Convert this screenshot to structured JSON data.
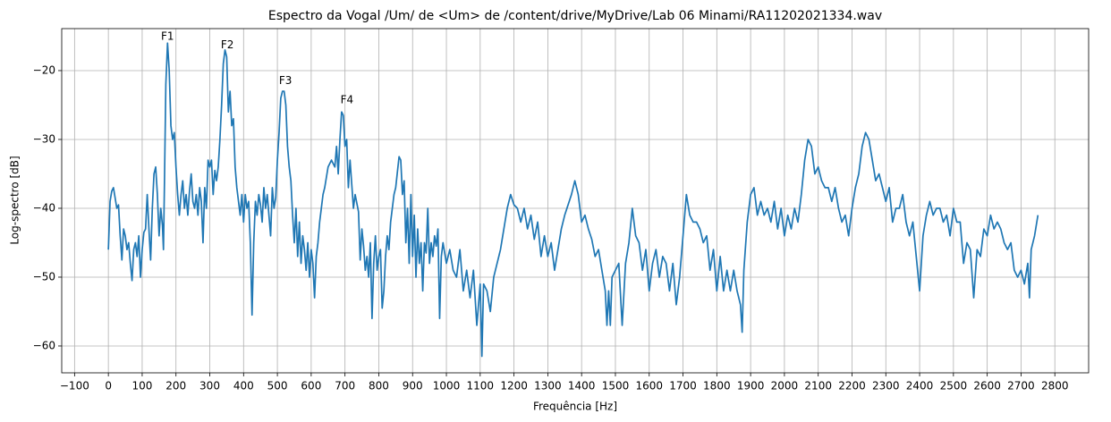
{
  "chart_data": {
    "type": "line",
    "title": "Espectro da Vogal /Um/ de <Um> de /content/drive/MyDrive/Lab 06 Minami/RA11202021334.wav",
    "xlabel": "Frequência [Hz]",
    "ylabel": "Log-spectro [dB]",
    "grid": true,
    "xlim": [
      -138,
      2900
    ],
    "ylim": [
      -63.9,
      -13.9
    ],
    "xticks": [
      {
        "value": -100,
        "label": "−100"
      },
      0,
      100,
      200,
      300,
      400,
      500,
      600,
      700,
      800,
      900,
      1000,
      1100,
      1200,
      1300,
      1400,
      1500,
      1600,
      1700,
      1800,
      1900,
      2000,
      2100,
      2200,
      2300,
      2400,
      2500,
      2600,
      2700,
      2800
    ],
    "yticks": [
      {
        "value": -60,
        "label": "−60"
      },
      {
        "value": -50,
        "label": "−50"
      },
      {
        "value": -40,
        "label": "−40"
      },
      {
        "value": -30,
        "label": "−30"
      },
      {
        "value": -20,
        "label": "−20"
      }
    ],
    "annotations": [
      {
        "text": "F1",
        "x": 175,
        "y": -15.1
      },
      {
        "text": "F2",
        "x": 352,
        "y": -16.3
      },
      {
        "text": "F3",
        "x": 524,
        "y": -21.5
      },
      {
        "text": "F4",
        "x": 706,
        "y": -24.3
      }
    ],
    "x": [
      0,
      5,
      10,
      15,
      20,
      25,
      30,
      35,
      40,
      45,
      50,
      55,
      60,
      65,
      70,
      75,
      80,
      85,
      90,
      95,
      100,
      105,
      110,
      115,
      120,
      125,
      130,
      135,
      140,
      145,
      150,
      155,
      160,
      163,
      166,
      170,
      175,
      180,
      185,
      190,
      195,
      200,
      205,
      210,
      215,
      220,
      225,
      230,
      235,
      240,
      245,
      250,
      255,
      260,
      265,
      270,
      275,
      280,
      285,
      290,
      295,
      300,
      305,
      310,
      315,
      320,
      325,
      330,
      335,
      340,
      345,
      350,
      355,
      360,
      365,
      370,
      375,
      380,
      385,
      390,
      395,
      400,
      405,
      410,
      415,
      420,
      425,
      430,
      435,
      440,
      445,
      450,
      455,
      460,
      465,
      470,
      475,
      480,
      485,
      490,
      495,
      500,
      505,
      510,
      515,
      520,
      525,
      530,
      535,
      540,
      545,
      550,
      555,
      560,
      565,
      570,
      575,
      580,
      585,
      590,
      595,
      600,
      605,
      610,
      615,
      620,
      625,
      630,
      635,
      640,
      650,
      660,
      670,
      675,
      680,
      685,
      690,
      695,
      700,
      705,
      710,
      715,
      720,
      725,
      730,
      740,
      745,
      750,
      755,
      760,
      765,
      770,
      775,
      780,
      785,
      790,
      795,
      800,
      805,
      810,
      815,
      820,
      825,
      830,
      835,
      840,
      845,
      850,
      860,
      865,
      870,
      875,
      880,
      885,
      890,
      895,
      900,
      905,
      910,
      915,
      920,
      925,
      930,
      935,
      940,
      945,
      950,
      955,
      960,
      965,
      970,
      975,
      980,
      985,
      990,
      1000,
      1010,
      1020,
      1030,
      1040,
      1050,
      1060,
      1070,
      1080,
      1090,
      1100,
      1105,
      1110,
      1120,
      1130,
      1140,
      1150,
      1160,
      1170,
      1180,
      1190,
      1200,
      1210,
      1220,
      1230,
      1240,
      1250,
      1260,
      1270,
      1280,
      1290,
      1300,
      1310,
      1320,
      1330,
      1340,
      1350,
      1370,
      1380,
      1390,
      1400,
      1410,
      1420,
      1430,
      1440,
      1450,
      1460,
      1470,
      1475,
      1480,
      1485,
      1490,
      1500,
      1510,
      1520,
      1530,
      1540,
      1550,
      1560,
      1570,
      1580,
      1590,
      1600,
      1610,
      1620,
      1630,
      1640,
      1650,
      1660,
      1670,
      1680,
      1690,
      1700,
      1710,
      1720,
      1730,
      1740,
      1750,
      1760,
      1770,
      1780,
      1790,
      1800,
      1810,
      1820,
      1830,
      1840,
      1850,
      1860,
      1870,
      1875,
      1880,
      1890,
      1900,
      1910,
      1920,
      1930,
      1940,
      1950,
      1960,
      1970,
      1980,
      1990,
      2000,
      2010,
      2020,
      2030,
      2040,
      2050,
      2060,
      2070,
      2080,
      2090,
      2100,
      2110,
      2120,
      2130,
      2140,
      2150,
      2160,
      2170,
      2180,
      2190,
      2200,
      2210,
      2220,
      2230,
      2240,
      2250,
      2260,
      2270,
      2280,
      2290,
      2300,
      2310,
      2320,
      2330,
      2340,
      2350,
      2360,
      2370,
      2380,
      2390,
      2400,
      2410,
      2420,
      2430,
      2440,
      2450,
      2460,
      2470,
      2480,
      2490,
      2500,
      2510,
      2520,
      2530,
      2540,
      2550,
      2560,
      2570,
      2580,
      2590,
      2600,
      2610,
      2620,
      2630,
      2640,
      2650,
      2660,
      2670,
      2680,
      2690,
      2700,
      2710,
      2720,
      2725,
      2730,
      2740,
      2750
    ],
    "series": [
      {
        "color": "#1f77b4",
        "values": [
          -46,
          -39,
          -37.5,
          -37,
          -38.5,
          -40,
          -39.5,
          -44,
          -47.5,
          -43,
          -44,
          -46,
          -45,
          -48,
          -50.5,
          -46,
          -45,
          -47,
          -44,
          -50,
          -46,
          -43.5,
          -43,
          -38,
          -43,
          -47.5,
          -40,
          -35,
          -34,
          -38,
          -44,
          -40,
          -42.5,
          -46,
          -36,
          -22,
          -16,
          -20,
          -28,
          -30,
          -29,
          -34,
          -38,
          -41,
          -38,
          -36,
          -40,
          -38,
          -41,
          -37.5,
          -35,
          -39,
          -40,
          -38,
          -41,
          -37,
          -39,
          -45,
          -37,
          -40,
          -33,
          -34,
          -33,
          -38,
          -34.5,
          -36,
          -34,
          -30,
          -25,
          -19,
          -17,
          -18,
          -26,
          -23,
          -28,
          -27,
          -34,
          -37,
          -39,
          -41,
          -38,
          -42,
          -38,
          -40,
          -39,
          -45,
          -55.5,
          -45,
          -39,
          -41,
          -38,
          -39.5,
          -42,
          -37,
          -40,
          -38,
          -41,
          -44,
          -37,
          -40,
          -38.5,
          -33,
          -29,
          -24,
          -23,
          -23,
          -25,
          -31,
          -34,
          -36,
          -41,
          -45,
          -40,
          -47,
          -42,
          -48,
          -44,
          -46,
          -49,
          -45,
          -50,
          -46,
          -48,
          -53,
          -47,
          -45,
          -42,
          -40,
          -38,
          -37,
          -34,
          -33,
          -34,
          -31,
          -35,
          -30,
          -26,
          -26.5,
          -31,
          -30,
          -37,
          -33,
          -36.5,
          -40,
          -38,
          -40.5,
          -47.5,
          -43,
          -45.5,
          -49,
          -47,
          -50,
          -45,
          -56,
          -48,
          -44,
          -49,
          -47,
          -46,
          -54.5,
          -52,
          -47,
          -44,
          -46,
          -42,
          -40,
          -38,
          -37,
          -32.5,
          -33,
          -38,
          -36,
          -45,
          -40,
          -48,
          -38,
          -47,
          -41,
          -50,
          -43,
          -48,
          -45,
          -52,
          -45,
          -46.5,
          -40,
          -48,
          -45,
          -47,
          -44,
          -45.5,
          -43,
          -56,
          -47,
          -45,
          -48,
          -46,
          -49,
          -50,
          -46,
          -52,
          -49,
          -53,
          -49,
          -57,
          -51,
          -61.5,
          -51,
          -52,
          -55,
          -50,
          -48,
          -46,
          -43,
          -40,
          -38,
          -39.5,
          -40,
          -42,
          -40,
          -43,
          -41,
          -44.5,
          -42,
          -47,
          -44,
          -47,
          -45,
          -49,
          -46,
          -43,
          -41,
          -38,
          -36,
          -38,
          -42,
          -41,
          -43,
          -44.5,
          -47,
          -46,
          -49,
          -52,
          -57,
          -52,
          -57,
          -50,
          -49,
          -48,
          -57,
          -48,
          -45,
          -40,
          -44,
          -45,
          -49,
          -46,
          -52,
          -48,
          -46,
          -50,
          -47,
          -48,
          -52,
          -48,
          -54,
          -50,
          -44,
          -38,
          -41,
          -42,
          -42,
          -43,
          -45,
          -44,
          -49,
          -46,
          -52,
          -47,
          -52,
          -49,
          -52,
          -49,
          -52,
          -54,
          -58,
          -49,
          -42,
          -38,
          -37,
          -41,
          -39,
          -41,
          -40,
          -42,
          -39,
          -43,
          -40,
          -44,
          -41,
          -43,
          -40,
          -42,
          -38,
          -33,
          -30,
          -31,
          -35,
          -34,
          -36,
          -37,
          -37,
          -39,
          -37,
          -40,
          -42,
          -41,
          -44,
          -40,
          -37,
          -35,
          -31,
          -29,
          -30,
          -33,
          -36,
          -35,
          -37,
          -39,
          -37,
          -42,
          -40,
          -40,
          -38,
          -42,
          -44,
          -42,
          -47,
          -52,
          -44,
          -41,
          -39,
          -41,
          -40,
          -40,
          -42,
          -41,
          -44,
          -40,
          -42,
          -42,
          -48,
          -45,
          -46,
          -53,
          -46,
          -47,
          -43,
          -44,
          -41,
          -43,
          -42,
          -43,
          -45,
          -46,
          -45,
          -49,
          -50,
          -49,
          -51,
          -48,
          -53,
          -46,
          -44,
          -41
        ]
      }
    ]
  }
}
